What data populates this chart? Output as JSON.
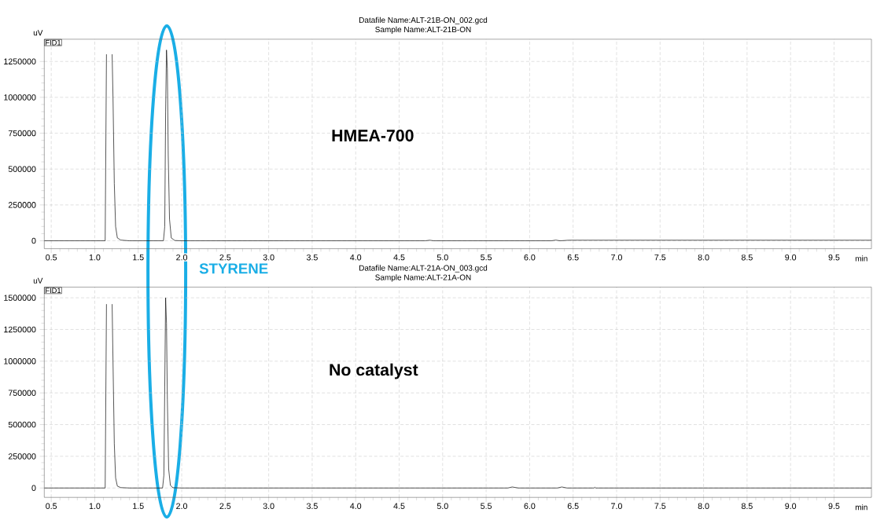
{
  "chart_data": [
    {
      "type": "line",
      "title": "Datafile Name:ALT-21B-ON_002.gcd",
      "subtitle": "Sample Name:ALT-21B-ON",
      "xlabel": "min",
      "ylabel": "uV",
      "annotations": [
        "FID1",
        "HMEA-700",
        "STYRENE"
      ],
      "xlim": [
        0.42,
        9.93
      ],
      "ylim": [
        -55000,
        1405000
      ],
      "xticks": [
        {
          "value": 0.5,
          "label": "0.5"
        },
        {
          "value": 1,
          "label": "1.0"
        },
        {
          "value": 1.5,
          "label": "1.5"
        },
        {
          "value": 2,
          "label": "2.0"
        },
        {
          "value": 2.5,
          "label": "2.5"
        },
        {
          "value": 3,
          "label": "3.0"
        },
        {
          "value": 3.5,
          "label": "3.5"
        },
        {
          "value": 4,
          "label": "4.0"
        },
        {
          "value": 4.5,
          "label": "4.5"
        },
        {
          "value": 5,
          "label": "5.0"
        },
        {
          "value": 5.5,
          "label": "5.5"
        },
        {
          "value": 6,
          "label": "6.0"
        },
        {
          "value": 6.5,
          "label": "6.5"
        },
        {
          "value": 7,
          "label": "7.0"
        },
        {
          "value": 7.5,
          "label": "7.5"
        },
        {
          "value": 8,
          "label": "8.0"
        },
        {
          "value": 8.5,
          "label": "8.5"
        },
        {
          "value": 9,
          "label": "9.0"
        },
        {
          "value": 9.5,
          "label": "9.5"
        }
      ],
      "yticks": [
        0,
        250000,
        500000,
        750000,
        1000000,
        1250000
      ],
      "grid": true,
      "series": [
        {
          "color": "#000000",
          "x": [
            0.42,
            1.12,
            1.135,
            1.145,
            1.2,
            1.21,
            1.225,
            1.24,
            1.26,
            1.3,
            1.4,
            1.79,
            1.805,
            1.815,
            1.825,
            1.835,
            1.845,
            1.86,
            1.88,
            1.92,
            2.0,
            4.8,
            4.85,
            4.9,
            6.25,
            6.3,
            6.35,
            6.45,
            9.93
          ],
          "values": [
            0,
            0,
            1300000,
            null,
            1300000,
            1000000,
            400000,
            100000,
            20000,
            5000,
            0,
            0,
            100000,
            900000,
            1330000,
            1200000,
            600000,
            150000,
            20000,
            2000,
            0,
            0,
            4000,
            0,
            0,
            5000,
            0,
            4000,
            4000
          ]
        }
      ]
    },
    {
      "type": "line",
      "title": "Datafile Name:ALT-21A-ON_003.gcd",
      "subtitle": "Sample Name:ALT-21A-ON",
      "xlabel": "min",
      "ylabel": "uV",
      "annotations": [
        "FID1",
        "No catalyst"
      ],
      "xlim": [
        0.42,
        9.93
      ],
      "ylim": [
        -74000,
        1584000
      ],
      "xticks": [
        {
          "value": 0.5,
          "label": "0.5"
        },
        {
          "value": 1,
          "label": "1.0"
        },
        {
          "value": 1.5,
          "label": "1.5"
        },
        {
          "value": 2,
          "label": "2.0"
        },
        {
          "value": 2.5,
          "label": "2.5"
        },
        {
          "value": 3,
          "label": "3.0"
        },
        {
          "value": 3.5,
          "label": "3.5"
        },
        {
          "value": 4,
          "label": "4.0"
        },
        {
          "value": 4.5,
          "label": "4.5"
        },
        {
          "value": 5,
          "label": "5.0"
        },
        {
          "value": 5.5,
          "label": "5.5"
        },
        {
          "value": 6,
          "label": "6.0"
        },
        {
          "value": 6.5,
          "label": "6.5"
        },
        {
          "value": 7,
          "label": "7.0"
        },
        {
          "value": 7.5,
          "label": "7.5"
        },
        {
          "value": 8,
          "label": "8.0"
        },
        {
          "value": 8.5,
          "label": "8.5"
        },
        {
          "value": 9,
          "label": "9.0"
        },
        {
          "value": 9.5,
          "label": "9.5"
        }
      ],
      "yticks": [
        0,
        250000,
        500000,
        750000,
        1000000,
        1250000,
        1500000
      ],
      "grid": true,
      "series": [
        {
          "color": "#000000",
          "x": [
            0.42,
            1.12,
            1.135,
            1.145,
            1.2,
            1.21,
            1.225,
            1.24,
            1.26,
            1.3,
            1.4,
            1.78,
            1.795,
            1.805,
            1.815,
            1.825,
            1.835,
            1.85,
            1.87,
            1.9,
            2.0,
            5.75,
            5.8,
            5.87,
            6.32,
            6.37,
            6.43,
            6.74,
            6.75,
            6.76,
            9.93
          ],
          "values": [
            0,
            0,
            1450000,
            null,
            1450000,
            1000000,
            350000,
            80000,
            15000,
            3000,
            0,
            0,
            100000,
            800000,
            1500000,
            1300000,
            700000,
            150000,
            20000,
            2000,
            0,
            0,
            8000,
            0,
            0,
            8000,
            0,
            0,
            6000,
            0,
            0
          ]
        }
      ]
    }
  ]
}
